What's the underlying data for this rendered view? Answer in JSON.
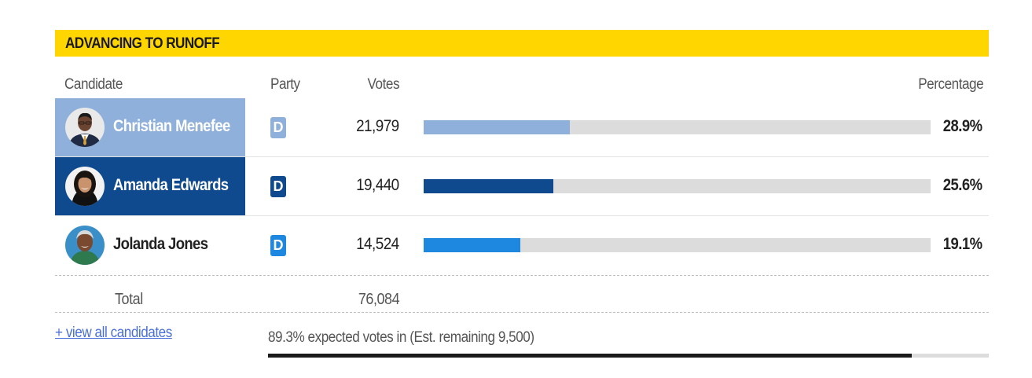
{
  "header": {
    "title": "ADVANCING TO RUNOFF",
    "color": "#FFD600"
  },
  "columns": {
    "candidate": "Candidate",
    "party": "Party",
    "votes": "Votes",
    "percentage": "Percentage"
  },
  "candidates": [
    {
      "name": "Christian Menefee",
      "party": "D",
      "votes": "21,979",
      "percentage": "28.9%",
      "share": 0.289,
      "highlight_bg": "#8FB0DA",
      "name_color": "#ffffff",
      "bar_color": "#8FB0DA",
      "badge_color": "#8FB0DA"
    },
    {
      "name": "Amanda Edwards",
      "party": "D",
      "votes": "19,440",
      "percentage": "25.6%",
      "share": 0.256,
      "highlight_bg": "#0F4A8E",
      "name_color": "#ffffff",
      "bar_color": "#0F4A8E",
      "badge_color": "#0F4A8E"
    },
    {
      "name": "Jolanda Jones",
      "party": "D",
      "votes": "14,524",
      "percentage": "19.1%",
      "share": 0.191,
      "highlight_bg": "",
      "name_color": "#222222",
      "bar_color": "#1E88E0",
      "badge_color": "#1E88E0"
    }
  ],
  "total": {
    "label": "Total",
    "votes": "76,084"
  },
  "view_all": "+ view all candidates",
  "expected": {
    "text": "89.3% expected votes in (Est. remaining 9,500)",
    "fraction": 0.893
  }
}
